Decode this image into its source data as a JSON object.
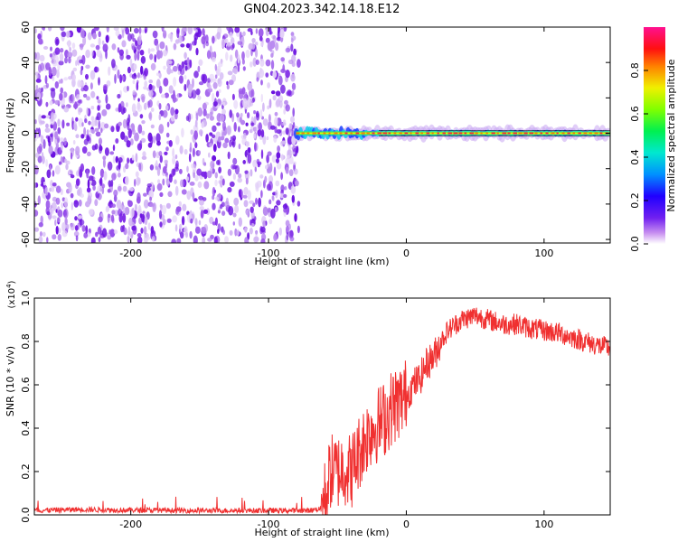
{
  "title": "GN04.2023.342.14.18.E12",
  "colors": {
    "spectrogram_noise": "#7a1fe6",
    "spectrogram_noise_light": "#c9a6f2",
    "snr_line": "#f03030",
    "colorbar": [
      "#ffffff",
      "#a040f0",
      "#3000ff",
      "#0080ff",
      "#00e0e0",
      "#00f060",
      "#60ff00",
      "#f0f000",
      "#ff8000",
      "#ff0000",
      "#ff1080"
    ]
  },
  "chart_data": [
    {
      "type": "heatmap",
      "name": "spectrogram",
      "xlabel": "Height of straight line (km)",
      "ylabel": "Frequency (Hz)",
      "xlim": [
        -270,
        148
      ],
      "ylim": [
        -62,
        60
      ],
      "xticks": [
        -200,
        -100,
        0,
        100
      ],
      "xtick_labels": [
        "-200",
        "-100",
        "0",
        "100"
      ],
      "yticks": [
        -60,
        -40,
        -20,
        0,
        20,
        40,
        60
      ],
      "ytick_labels": [
        "-60",
        "-40",
        "-20",
        "0",
        "20",
        "40",
        "60"
      ],
      "noise_region": {
        "x_from": -270,
        "x_to": -78,
        "freq_from": -62,
        "freq_to": 60
      },
      "signal_band": {
        "x_from": -80,
        "x_to": 148,
        "center_freq": 0,
        "half_width": 3
      },
      "colorbar": {
        "label": "Normalized spectral amplitude",
        "range": [
          0,
          1
        ],
        "ticks": [
          0.0,
          0.2,
          0.4,
          0.6,
          0.8
        ],
        "tick_labels": [
          "0.0",
          "0.2",
          "0.4",
          "0.6",
          "0.8"
        ]
      },
      "grid": false
    },
    {
      "type": "line",
      "name": "snr",
      "xlabel": "Height of straight line (km)",
      "ylabel": "SNR (10 * v/v)",
      "y_multiplier": "(x10",
      "y_multiplier_exp": "4",
      "y_multiplier_close": ")",
      "xlim": [
        -270,
        148
      ],
      "ylim": [
        0,
        1.0
      ],
      "xticks": [
        -200,
        -100,
        0,
        100
      ],
      "xtick_labels": [
        "-200",
        "-100",
        "0",
        "100"
      ],
      "yticks": [
        0.0,
        0.2,
        0.4,
        0.6,
        0.8,
        1.0
      ],
      "ytick_labels": [
        "0.0",
        "0.2",
        "0.4",
        "0.6",
        "0.8",
        "1.0"
      ],
      "series": [
        {
          "x": [
            -270,
            -240,
            -200,
            -150,
            -100,
            -70,
            -62,
            -58,
            -55,
            -50,
            -45,
            -40,
            -35,
            -30,
            -25,
            -20,
            -15,
            -10,
            -5,
            0,
            5,
            10,
            15,
            20,
            25,
            30,
            40,
            50,
            60,
            70,
            80,
            90,
            100,
            110,
            120,
            130,
            140,
            148
          ],
          "y": [
            0.02,
            0.025,
            0.022,
            0.02,
            0.02,
            0.02,
            0.03,
            0.1,
            0.2,
            0.2,
            0.22,
            0.2,
            0.28,
            0.35,
            0.4,
            0.42,
            0.45,
            0.5,
            0.52,
            0.55,
            0.6,
            0.63,
            0.7,
            0.73,
            0.8,
            0.85,
            0.9,
            0.92,
            0.9,
            0.88,
            0.88,
            0.86,
            0.85,
            0.84,
            0.82,
            0.8,
            0.78,
            0.77
          ]
        }
      ],
      "grid": false
    }
  ]
}
